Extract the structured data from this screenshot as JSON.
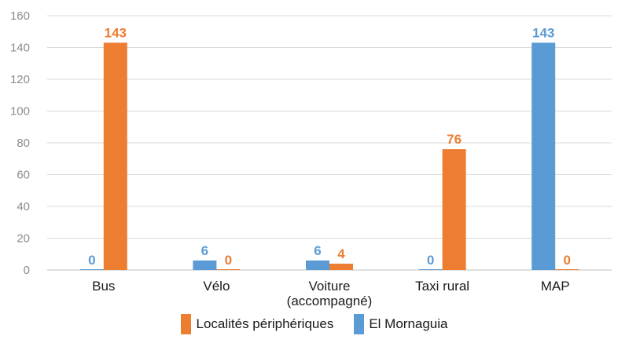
{
  "chart_data": {
    "type": "bar",
    "categories": [
      "Bus",
      "Vélo",
      "Voiture (accompagné)",
      "Taxi rural",
      "MAP"
    ],
    "category_lines": [
      [
        "Bus"
      ],
      [
        "Vélo"
      ],
      [
        "Voiture",
        "(accompagné)"
      ],
      [
        "Taxi rural"
      ],
      [
        "MAP"
      ]
    ],
    "series": [
      {
        "name": "El Mornaguia",
        "color": "#5b9bd5",
        "values": [
          0,
          6,
          6,
          0,
          143
        ]
      },
      {
        "name": "Localités périphériques",
        "color": "#ed7d31",
        "values": [
          143,
          0,
          4,
          76,
          0
        ]
      }
    ],
    "y_ticks": [
      "0",
      "20",
      "40",
      "60",
      "80",
      "100",
      "120",
      "140",
      "160"
    ],
    "ylim": [
      0,
      160
    ],
    "grid": true,
    "legend": {
      "position": "bottom",
      "items": [
        {
          "label": "Localités périphériques",
          "color": "#ed7d31"
        },
        {
          "label": "El Mornaguia",
          "color": "#5b9bd5"
        }
      ]
    }
  }
}
